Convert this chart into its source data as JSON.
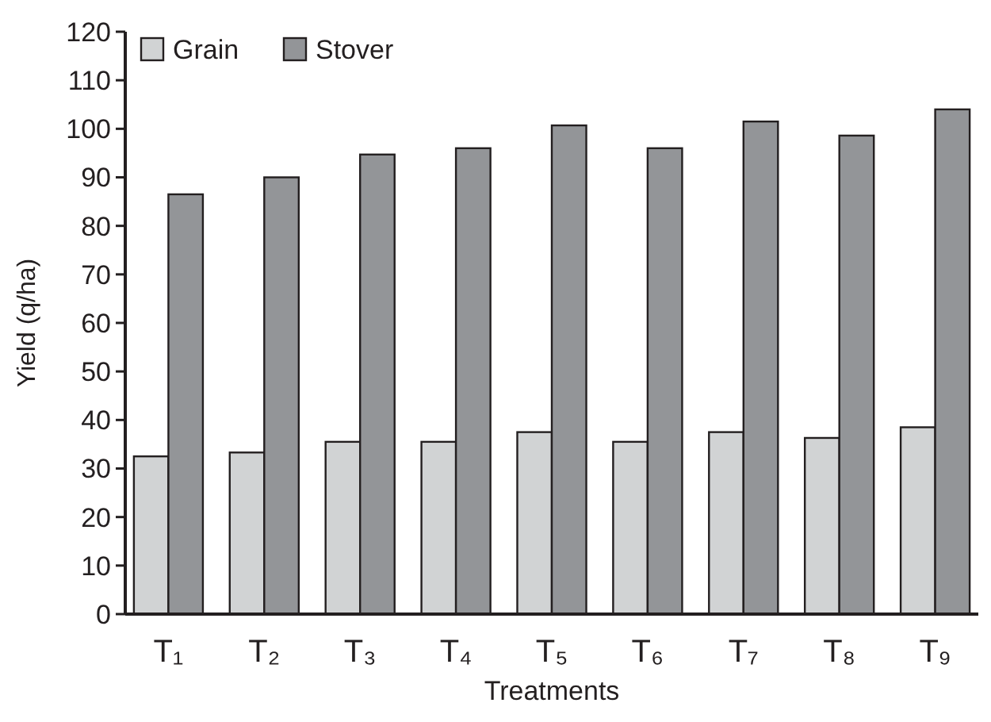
{
  "chart_data": {
    "type": "bar",
    "xlabel": "Treatments",
    "ylabel": "Yield (q/ha)",
    "categories": [
      "T₁",
      "T₂",
      "T₃",
      "T₄",
      "T₅",
      "T₆",
      "T₇",
      "T₈",
      "T₉"
    ],
    "series": [
      {
        "name": "Grain",
        "color": "#d1d3d4",
        "values": [
          32.5,
          33.3,
          35.5,
          35.5,
          37.5,
          35.5,
          37.5,
          36.3,
          38.5
        ]
      },
      {
        "name": "Stover",
        "color": "#939598",
        "values": [
          86.5,
          90,
          94.7,
          96,
          100.7,
          96,
          101.5,
          98.6,
          104
        ]
      }
    ],
    "ylim": [
      0,
      120
    ],
    "yticks": [
      0,
      10,
      20,
      30,
      40,
      50,
      60,
      70,
      80,
      90,
      100,
      110,
      120
    ],
    "legend": "top left",
    "grid": false
  }
}
